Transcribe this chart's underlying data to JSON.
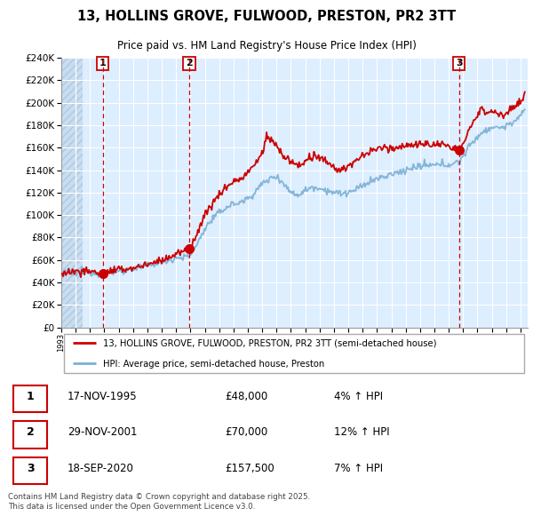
{
  "title": "13, HOLLINS GROVE, FULWOOD, PRESTON, PR2 3TT",
  "subtitle": "Price paid vs. HM Land Registry's House Price Index (HPI)",
  "ylim": [
    0,
    240000
  ],
  "yticks": [
    0,
    20000,
    40000,
    60000,
    80000,
    100000,
    120000,
    140000,
    160000,
    180000,
    200000,
    220000,
    240000
  ],
  "xlim_start": 1993.0,
  "xlim_end": 2025.5,
  "xticks": [
    1993,
    1994,
    1995,
    1996,
    1997,
    1998,
    1999,
    2000,
    2001,
    2002,
    2003,
    2004,
    2005,
    2006,
    2007,
    2008,
    2009,
    2010,
    2011,
    2012,
    2013,
    2014,
    2015,
    2016,
    2017,
    2018,
    2019,
    2020,
    2021,
    2022,
    2023,
    2024,
    2025
  ],
  "sale_dates": [
    1995.88,
    2001.91,
    2020.72
  ],
  "sale_prices": [
    48000,
    70000,
    157500
  ],
  "sale_labels": [
    "1",
    "2",
    "3"
  ],
  "vline_color": "#cc0000",
  "hpi_color": "#7bafd4",
  "price_color": "#cc0000",
  "sale_marker_color": "#cc0000",
  "bg_color": "#ddeeff",
  "hatch_color": "#c8ddf0",
  "legend_label_price": "13, HOLLINS GROVE, FULWOOD, PRESTON, PR2 3TT (semi-detached house)",
  "legend_label_hpi": "HPI: Average price, semi-detached house, Preston",
  "table_entries": [
    {
      "num": "1",
      "date": "17-NOV-1995",
      "price": "£48,000",
      "hpi": "4% ↑ HPI"
    },
    {
      "num": "2",
      "date": "29-NOV-2001",
      "price": "£70,000",
      "hpi": "12% ↑ HPI"
    },
    {
      "num": "3",
      "date": "18-SEP-2020",
      "price": "£157,500",
      "hpi": "7% ↑ HPI"
    }
  ],
  "footnote": "Contains HM Land Registry data © Crown copyright and database right 2025.\nThis data is licensed under the Open Government Licence v3.0.",
  "grid_color": "#ffffff"
}
